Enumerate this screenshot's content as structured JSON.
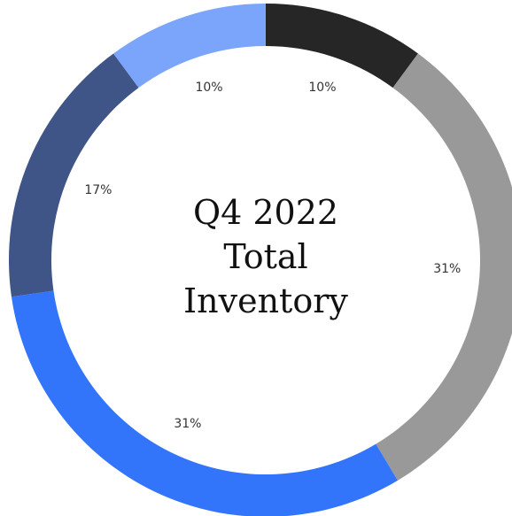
{
  "chart_data": {
    "type": "donut",
    "title": "Q4 2022 Total Inventory",
    "values": [
      10,
      31,
      31,
      17,
      10
    ],
    "value_labels": [
      "10%",
      "31%",
      "31%",
      "17%",
      "10%"
    ],
    "colors": [
      "#262626",
      "#999999",
      "#3275fb",
      "#3f5487",
      "#7aa5fb"
    ]
  }
}
